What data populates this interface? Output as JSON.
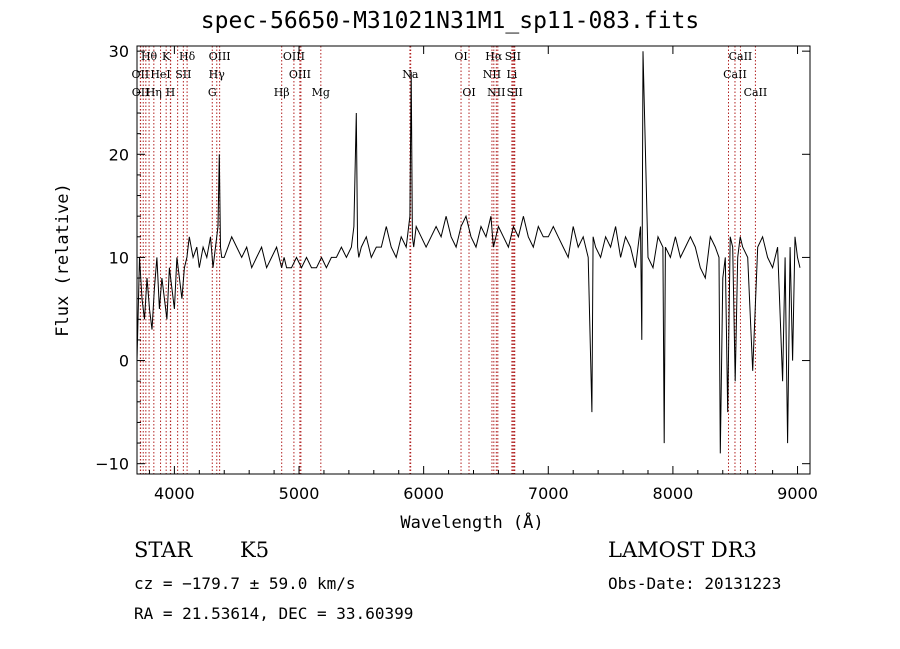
{
  "chart_data": {
    "type": "line",
    "title": "spec-56650-M31021N31M1_sp11-083.fits",
    "xlabel": "Wavelength (Å)",
    "ylabel": "Flux (relative)",
    "xlim": [
      3700,
      9100
    ],
    "ylim": [
      -11,
      30.5
    ],
    "x_ticks": [
      4000,
      5000,
      6000,
      7000,
      8000,
      9000
    ],
    "y_ticks": [
      -10,
      0,
      10,
      20,
      30
    ],
    "x_tick_labels": [
      "4000",
      "5000",
      "6000",
      "7000",
      "8000",
      "9000"
    ],
    "y_tick_labels": [
      "−10",
      "0",
      "10",
      "20",
      "30"
    ],
    "series": [
      {
        "name": "flux",
        "x": [
          3700,
          3720,
          3740,
          3760,
          3780,
          3800,
          3820,
          3840,
          3860,
          3880,
          3900,
          3920,
          3940,
          3960,
          3980,
          4000,
          4020,
          4040,
          4060,
          4080,
          4100,
          4120,
          4150,
          4180,
          4200,
          4230,
          4260,
          4290,
          4310,
          4330,
          4350,
          4360,
          4370,
          4380,
          4400,
          4430,
          4460,
          4500,
          4540,
          4580,
          4620,
          4660,
          4700,
          4740,
          4780,
          4820,
          4860,
          4880,
          4900,
          4940,
          4980,
          5020,
          5060,
          5100,
          5140,
          5180,
          5220,
          5260,
          5300,
          5340,
          5380,
          5420,
          5440,
          5460,
          5470,
          5480,
          5500,
          5540,
          5580,
          5620,
          5660,
          5700,
          5740,
          5780,
          5820,
          5860,
          5890,
          5900,
          5910,
          5920,
          5940,
          5980,
          6020,
          6060,
          6100,
          6140,
          6180,
          6220,
          6260,
          6300,
          6340,
          6380,
          6420,
          6460,
          6500,
          6540,
          6560,
          6580,
          6600,
          6640,
          6680,
          6720,
          6760,
          6800,
          6840,
          6880,
          6920,
          6960,
          7000,
          7040,
          7080,
          7120,
          7160,
          7200,
          7240,
          7280,
          7320,
          7350,
          7360,
          7380,
          7420,
          7460,
          7500,
          7540,
          7580,
          7620,
          7660,
          7700,
          7740,
          7750,
          7760,
          7800,
          7840,
          7880,
          7920,
          7930,
          7940,
          7980,
          8020,
          8060,
          8100,
          8140,
          8180,
          8220,
          8260,
          8300,
          8340,
          8370,
          8380,
          8400,
          8420,
          8440,
          8460,
          8480,
          8500,
          8520,
          8540,
          8560,
          8600,
          8640,
          8680,
          8720,
          8760,
          8800,
          8840,
          8880,
          8900,
          8920,
          8940,
          8960,
          8980,
          9000,
          9020
        ],
        "y": [
          0,
          10,
          6,
          4,
          8,
          5,
          3,
          7,
          10,
          5,
          8,
          6,
          4,
          9,
          7,
          5,
          10,
          8,
          6,
          9,
          10,
          12,
          10,
          11,
          9,
          11,
          10,
          12,
          9,
          11,
          13,
          20,
          11,
          10,
          10,
          11,
          12,
          11,
          10,
          11,
          9,
          10,
          11,
          9,
          10,
          11,
          9,
          10,
          9,
          9,
          10,
          9,
          10,
          9,
          9,
          10,
          9,
          10,
          10,
          11,
          10,
          11,
          13,
          24,
          11,
          10,
          11,
          12,
          10,
          11,
          11,
          13,
          11,
          10,
          12,
          11,
          14,
          28,
          12,
          11,
          13,
          12,
          11,
          12,
          13,
          12,
          14,
          12,
          11,
          13,
          14,
          12,
          11,
          13,
          12,
          14,
          11,
          12,
          13,
          12,
          11,
          13,
          12,
          14,
          12,
          11,
          13,
          12,
          12,
          13,
          12,
          11,
          10,
          13,
          11,
          12,
          10,
          -5,
          12,
          11,
          10,
          12,
          11,
          13,
          10,
          12,
          11,
          9,
          13,
          2,
          30,
          10,
          9,
          12,
          11,
          -8,
          11,
          10,
          12,
          10,
          11,
          12,
          11,
          9,
          8,
          12,
          11,
          10,
          -9,
          8,
          10,
          -5,
          12,
          11,
          -2,
          10,
          12,
          11,
          10,
          -1,
          11,
          12,
          10,
          9,
          11,
          -2,
          10,
          -8,
          11,
          0,
          12,
          10,
          9
        ]
      }
    ],
    "line_groups": {
      "top": [
        {
          "name": "Hθ",
          "wave": 3797,
          "row": 0
        },
        {
          "name": "K",
          "wave": 3934,
          "row": 0
        },
        {
          "name": "Hδ",
          "wave": 4102,
          "row": 0
        },
        {
          "name": "OIII",
          "wave": 4363,
          "row": 0
        },
        {
          "name": "OIII",
          "wave": 4959,
          "row": 0
        },
        {
          "name": "OI",
          "wave": 6300,
          "row": 0
        },
        {
          "name": "Hα",
          "wave": 6563,
          "row": 0
        },
        {
          "name": "SII",
          "wave": 6716,
          "row": 0
        },
        {
          "name": "OII",
          "wave": 3727,
          "row": 1
        },
        {
          "name": "HeI",
          "wave": 3889,
          "row": 1
        },
        {
          "name": "SII",
          "wave": 4072,
          "row": 1
        },
        {
          "name": "Hγ",
          "wave": 4340,
          "row": 1
        },
        {
          "name": "OIII",
          "wave": 5007,
          "row": 1
        },
        {
          "name": "Na",
          "wave": 5893,
          "row": 1
        },
        {
          "name": "NII",
          "wave": 6548,
          "row": 1
        },
        {
          "name": "Li",
          "wave": 6708,
          "row": 1
        },
        {
          "name": "OII",
          "wave": 3729,
          "row": 2
        },
        {
          "name": "Hη",
          "wave": 3835,
          "row": 2
        },
        {
          "name": "H",
          "wave": 3968,
          "row": 2
        },
        {
          "name": "G",
          "wave": 4304,
          "row": 2
        },
        {
          "name": "Hβ",
          "wave": 4861,
          "row": 2
        },
        {
          "name": "Mg",
          "wave": 5175,
          "row": 2
        },
        {
          "name": "OI",
          "wave": 6364,
          "row": 2
        },
        {
          "name": "NII",
          "wave": 6583,
          "row": 2
        },
        {
          "name": "SII",
          "wave": 6731,
          "row": 2
        }
      ],
      "ca": [
        {
          "name": "CaII",
          "wave": 8542,
          "row": 0
        },
        {
          "name": "CaII",
          "wave": 8498,
          "row": 1
        },
        {
          "name": "CaII",
          "wave": 8662,
          "row": 2
        }
      ],
      "extra_markers": [
        3750,
        3771,
        3889,
        3970,
        4026,
        4102,
        5015,
        5890,
        5896,
        6595,
        6725,
        8446,
        8542
      ]
    }
  },
  "info": {
    "object_class": "STAR",
    "subclass": "K5",
    "survey": "LAMOST DR3",
    "cz": "cz = −179.7 ± 59.0 km/s",
    "obs_date": "Obs-Date: 20131223",
    "radec": "RA =  21.53614, DEC =  33.60399"
  },
  "colors": {
    "marker": "#b22222",
    "line": "#000000",
    "axis": "#000000"
  }
}
